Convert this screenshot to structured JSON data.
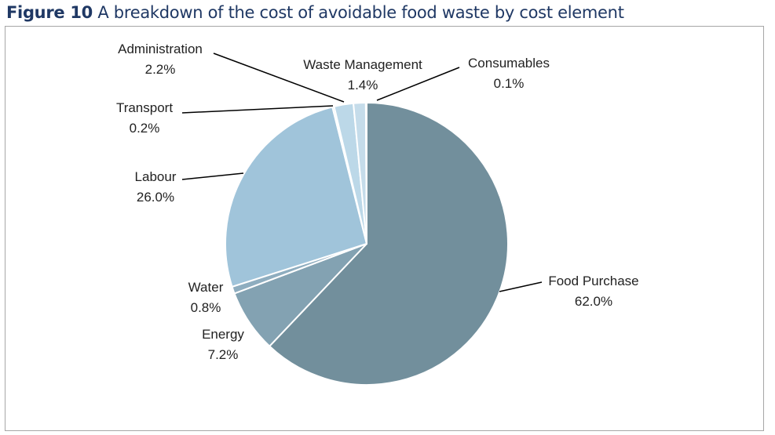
{
  "title": {
    "figure": "Figure 10",
    "text": "A breakdown of the cost of avoidable food waste by cost element"
  },
  "chart_data": {
    "type": "pie",
    "title": "",
    "start": "top",
    "direction": "clockwise",
    "categories": [
      "Food Purchase",
      "Energy",
      "Water",
      "Labour",
      "Transport",
      "Administration",
      "Waste Management",
      "Consumables"
    ],
    "values": [
      62.0,
      7.2,
      0.8,
      26.0,
      0.2,
      2.2,
      1.4,
      0.1
    ],
    "value_labels": [
      "62.0%",
      "7.2%",
      "0.8%",
      "26.0%",
      "0.2%",
      "2.2%",
      "1.4%",
      "0.1%"
    ],
    "colors": [
      "#728f9c",
      "#83a2b2",
      "#8eadbf",
      "#a0c4da",
      "#b3d2e4",
      "#bcd8e8",
      "#c5dcea",
      "#d2e4ef"
    ],
    "legend": "none"
  }
}
